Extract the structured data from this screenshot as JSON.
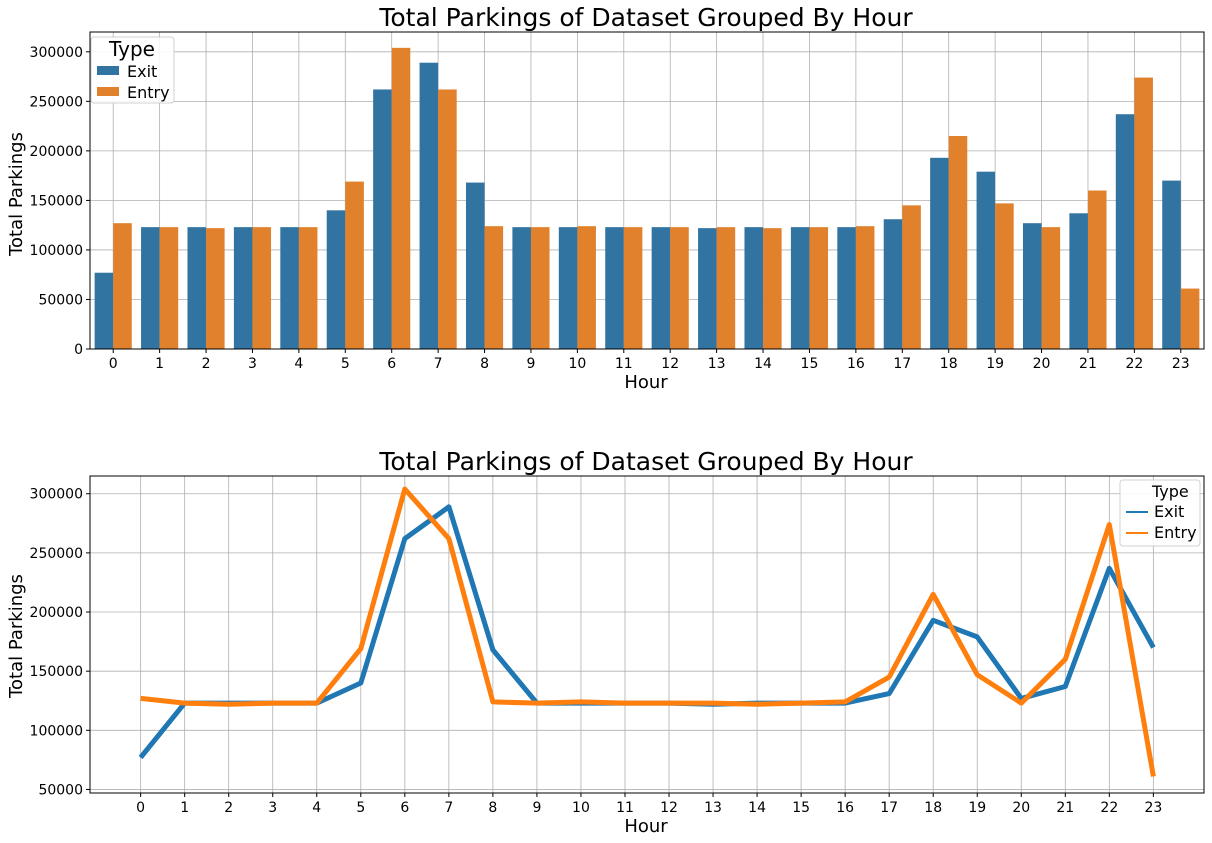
{
  "chart_data": [
    {
      "type": "bar",
      "title": "Total Parkings of Dataset Grouped By Hour",
      "xlabel": "Hour",
      "ylabel": "Total Parkings",
      "ylim": [
        0,
        320000
      ],
      "yticks": [
        0,
        50000,
        100000,
        150000,
        200000,
        250000,
        300000
      ],
      "grid": true,
      "legend": {
        "title": "Type",
        "placement": "top-left"
      },
      "categories": [
        "0",
        "1",
        "2",
        "3",
        "4",
        "5",
        "6",
        "7",
        "8",
        "9",
        "10",
        "11",
        "12",
        "13",
        "14",
        "15",
        "16",
        "17",
        "18",
        "19",
        "20",
        "21",
        "22",
        "23"
      ],
      "series": [
        {
          "name": "Exit",
          "color": "#3274a1",
          "values": [
            77000,
            123000,
            123000,
            123000,
            123000,
            140000,
            262000,
            289000,
            168000,
            123000,
            123000,
            123000,
            123000,
            122000,
            123000,
            123000,
            123000,
            131000,
            193000,
            179000,
            127000,
            137000,
            237000,
            170000
          ]
        },
        {
          "name": "Entry",
          "color": "#e1812c",
          "values": [
            127000,
            123000,
            122000,
            123000,
            123000,
            169000,
            304000,
            262000,
            124000,
            123000,
            124000,
            123000,
            123000,
            123000,
            122000,
            123000,
            124000,
            145000,
            215000,
            147000,
            123000,
            160000,
            274000,
            61000
          ]
        }
      ]
    },
    {
      "type": "line",
      "title": "Total Parkings of Dataset Grouped By Hour",
      "xlabel": "Hour",
      "ylabel": "Total Parkings",
      "ylim": [
        47000,
        315000
      ],
      "yticks": [
        50000,
        100000,
        150000,
        200000,
        250000,
        300000
      ],
      "grid": true,
      "legend": {
        "title": "Type",
        "placement": "top-right"
      },
      "x": [
        0,
        1,
        2,
        3,
        4,
        5,
        6,
        7,
        8,
        9,
        10,
        11,
        12,
        13,
        14,
        15,
        16,
        17,
        18,
        19,
        20,
        21,
        22,
        23
      ],
      "series": [
        {
          "name": "Exit",
          "color": "#1f77b4",
          "values": [
            77000,
            123000,
            123000,
            123000,
            123000,
            140000,
            262000,
            289000,
            168000,
            123000,
            123000,
            123000,
            123000,
            122000,
            123000,
            123000,
            123000,
            131000,
            193000,
            179000,
            127000,
            137000,
            237000,
            170000
          ]
        },
        {
          "name": "Entry",
          "color": "#ff7f0e",
          "values": [
            127000,
            123000,
            122000,
            123000,
            123000,
            169000,
            304000,
            262000,
            124000,
            123000,
            124000,
            123000,
            123000,
            123000,
            122000,
            123000,
            124000,
            145000,
            215000,
            147000,
            123000,
            160000,
            274000,
            61000
          ]
        }
      ]
    }
  ]
}
